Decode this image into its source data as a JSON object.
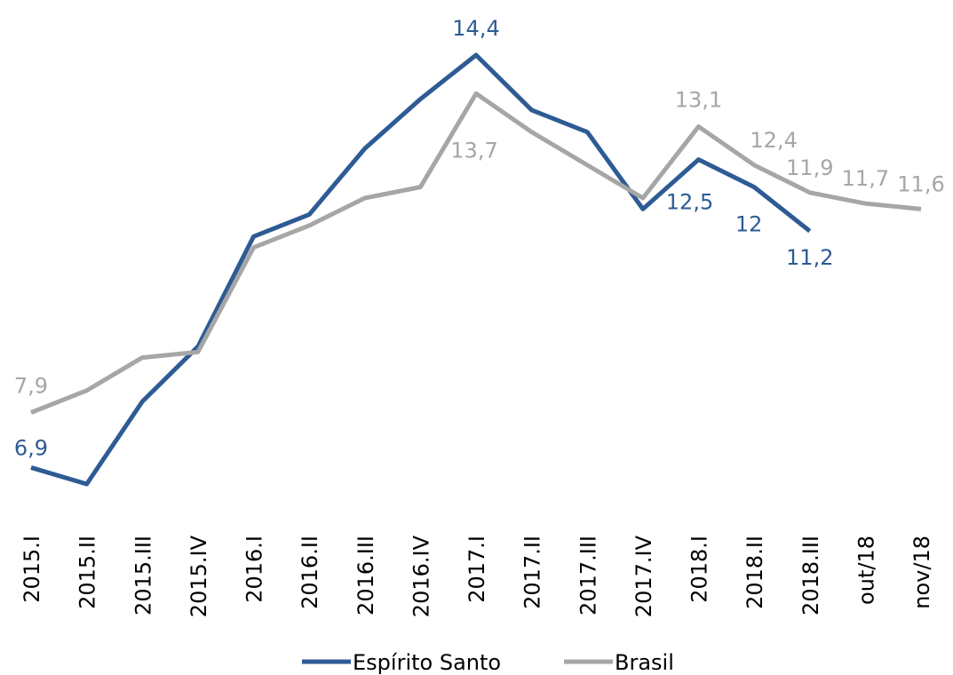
{
  "chart_data": {
    "type": "line",
    "categories": [
      "2015.I",
      "2015.II",
      "2015.III",
      "2015.IV",
      "2016.I",
      "2016.II",
      "2016.III",
      "2016.IV",
      "2017.I",
      "2017.II",
      "2017.III",
      "2017.IV",
      "2018.I",
      "2018.II",
      "2018.III",
      "out/18",
      "nov/18"
    ],
    "series": [
      {
        "name": "Espírito Santo",
        "color": "#2e5b94",
        "values": [
          6.9,
          6.6,
          8.1,
          9.1,
          11.1,
          11.5,
          12.7,
          13.6,
          14.4,
          13.4,
          13.0,
          11.6,
          12.5,
          12.0,
          11.2,
          null,
          null
        ],
        "value_labels": [
          "6,9",
          null,
          null,
          null,
          null,
          null,
          null,
          null,
          "14,4",
          null,
          null,
          null,
          "12,5",
          "12",
          "11,2",
          null,
          null
        ]
      },
      {
        "name": "Brasil",
        "color": "#a6a6a6",
        "values": [
          7.9,
          8.3,
          8.9,
          9.0,
          10.9,
          11.3,
          11.8,
          12.0,
          13.7,
          13.0,
          12.4,
          11.8,
          13.1,
          12.4,
          11.9,
          11.7,
          11.6
        ],
        "value_labels": [
          "7,9",
          null,
          null,
          null,
          null,
          null,
          null,
          null,
          "13,7",
          null,
          null,
          null,
          "13,1",
          "12,4",
          "11,9",
          "11,7",
          "11,6"
        ]
      }
    ],
    "legend": "bottom",
    "grid": false
  }
}
